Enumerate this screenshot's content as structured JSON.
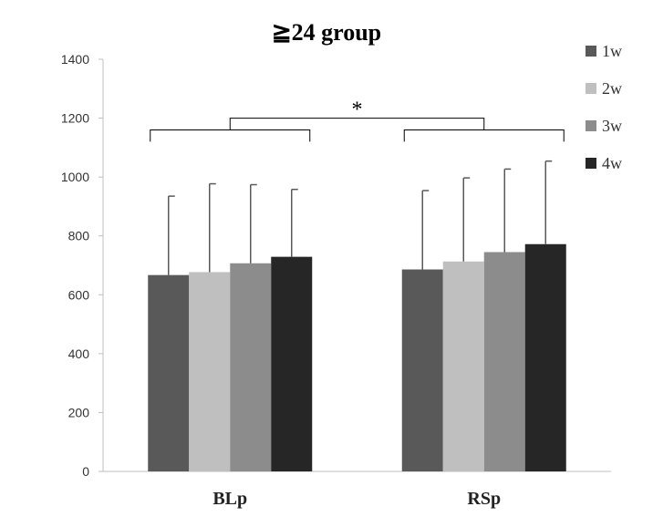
{
  "chart_data": {
    "type": "bar",
    "title": "≧24 group",
    "categories": [
      "BLp",
      "RSp"
    ],
    "series": [
      {
        "name": "1w",
        "values": [
          667,
          686
        ],
        "errors": [
          268,
          268
        ],
        "color": "#595959"
      },
      {
        "name": "2w",
        "values": [
          677,
          713
        ],
        "errors": [
          300,
          284
        ],
        "color": "#bfbfbf"
      },
      {
        "name": "3w",
        "values": [
          707,
          745
        ],
        "errors": [
          267,
          282
        ],
        "color": "#8c8c8c"
      },
      {
        "name": "4w",
        "values": [
          729,
          772
        ],
        "errors": [
          229,
          282
        ],
        "color": "#262626"
      }
    ],
    "ylim": [
      0,
      1400
    ],
    "yticks": [
      0,
      200,
      400,
      600,
      800,
      1000,
      1200,
      1400
    ],
    "xlabel": "",
    "ylabel": "",
    "grid": false,
    "legend": "right",
    "annotation": {
      "text": "*"
    }
  }
}
